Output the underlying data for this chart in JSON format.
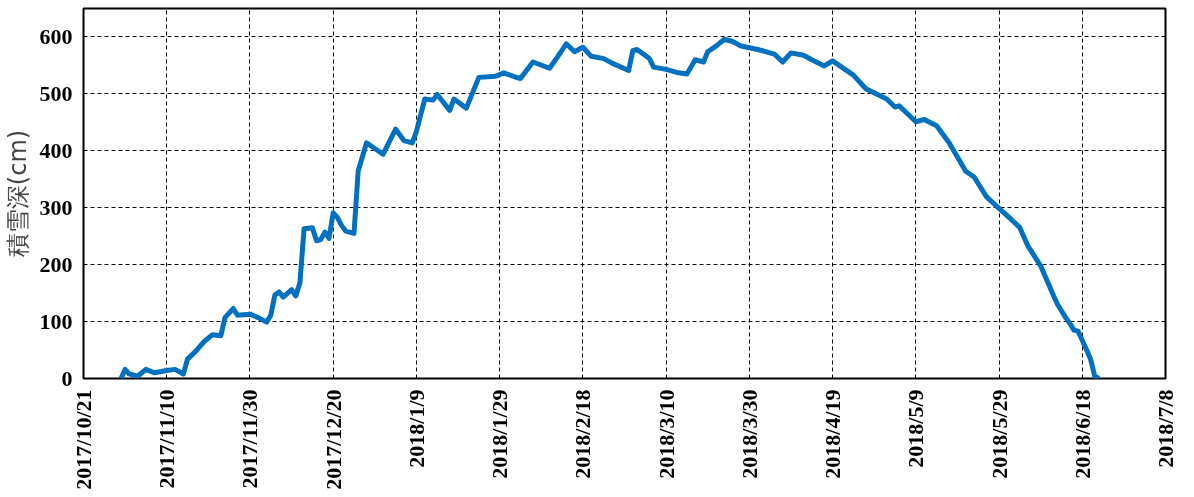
{
  "chart_data": {
    "type": "line",
    "ylabel": "積雪深(cm)",
    "x": [
      "2017-10-30",
      "2017-10-31",
      "2017-11-01",
      "2017-11-03",
      "2017-11-05",
      "2017-11-07",
      "2017-11-10",
      "2017-11-12",
      "2017-11-14",
      "2017-11-15",
      "2017-11-17",
      "2017-11-19",
      "2017-11-21",
      "2017-11-23",
      "2017-11-24",
      "2017-11-26",
      "2017-11-27",
      "2017-11-30",
      "2017-12-02",
      "2017-12-04",
      "2017-12-05",
      "2017-12-06",
      "2017-12-07",
      "2017-12-08",
      "2017-12-10",
      "2017-12-11",
      "2017-12-12",
      "2017-12-13",
      "2017-12-15",
      "2017-12-16",
      "2017-12-17",
      "2017-12-18",
      "2017-12-19",
      "2017-12-20",
      "2017-12-21",
      "2017-12-22",
      "2017-12-23",
      "2017-12-25",
      "2017-12-26",
      "2017-12-28",
      "2017-12-30",
      "2018-01-01",
      "2018-01-04",
      "2018-01-06",
      "2018-01-08",
      "2018-01-09",
      "2018-01-11",
      "2018-01-13",
      "2018-01-14",
      "2018-01-17",
      "2018-01-18",
      "2018-01-21",
      "2018-01-24",
      "2018-01-28",
      "2018-01-30",
      "2018-02-02",
      "2018-02-03",
      "2018-02-06",
      "2018-02-10",
      "2018-02-12",
      "2018-02-14",
      "2018-02-16",
      "2018-02-18",
      "2018-02-20",
      "2018-02-23",
      "2018-02-25",
      "2018-03-01",
      "2018-03-02",
      "2018-03-03",
      "2018-03-06",
      "2018-03-07",
      "2018-03-10",
      "2018-03-13",
      "2018-03-15",
      "2018-03-17",
      "2018-03-19",
      "2018-03-20",
      "2018-03-22",
      "2018-03-24",
      "2018-03-26",
      "2018-03-28",
      "2018-04-01",
      "2018-04-05",
      "2018-04-07",
      "2018-04-09",
      "2018-04-12",
      "2018-04-14",
      "2018-04-17",
      "2018-04-19",
      "2018-04-24",
      "2018-04-27",
      "2018-05-02",
      "2018-05-04",
      "2018-05-05",
      "2018-05-07",
      "2018-05-09",
      "2018-05-11",
      "2018-05-14",
      "2018-05-17",
      "2018-05-21",
      "2018-05-23",
      "2018-05-26",
      "2018-05-29",
      "2018-06-01",
      "2018-06-03",
      "2018-06-05",
      "2018-06-08",
      "2018-06-11",
      "2018-06-12",
      "2018-06-14",
      "2018-06-15",
      "2018-06-16",
      "2018-06-17",
      "2018-06-19",
      "2018-06-20",
      "2018-06-21",
      "2018-06-22"
    ],
    "series": [
      {
        "color": "#0070c0",
        "values": [
          0,
          16,
          8,
          4,
          16,
          10,
          14,
          16,
          8,
          34,
          48,
          65,
          77,
          75,
          107,
          123,
          111,
          113,
          107,
          99,
          111,
          147,
          152,
          143,
          156,
          145,
          168,
          263,
          265,
          242,
          244,
          257,
          246,
          291,
          283,
          269,
          259,
          255,
          364,
          414,
          404,
          394,
          438,
          418,
          414,
          434,
          491,
          489,
          499,
          471,
          491,
          475,
          529,
          531,
          537,
          529,
          527,
          556,
          545,
          566,
          588,
          574,
          582,
          566,
          562,
          554,
          541,
          576,
          578,
          562,
          547,
          543,
          537,
          535,
          560,
          556,
          574,
          584,
          596,
          592,
          584,
          578,
          570,
          556,
          572,
          568,
          560,
          549,
          558,
          533,
          509,
          491,
          477,
          479,
          465,
          451,
          455,
          444,
          414,
          364,
          354,
          319,
          299,
          279,
          265,
          232,
          198,
          147,
          131,
          107,
          97,
          85,
          83,
          51,
          34,
          4,
          0
        ]
      }
    ],
    "xlim": [
      "2017-10-21",
      "2018-07-08"
    ],
    "xticks": [
      {
        "value": "2017-10-21",
        "label": "2017/10/21"
      },
      {
        "value": "2017-11-10",
        "label": "2017/11/10"
      },
      {
        "value": "2017-11-30",
        "label": "2017/11/30"
      },
      {
        "value": "2017-12-20",
        "label": "2017/12/20"
      },
      {
        "value": "2018-01-09",
        "label": "2018/1/9"
      },
      {
        "value": "2018-01-29",
        "label": "2018/1/29"
      },
      {
        "value": "2018-02-18",
        "label": "2018/2/18"
      },
      {
        "value": "2018-03-10",
        "label": "2018/3/10"
      },
      {
        "value": "2018-03-30",
        "label": "2018/3/30"
      },
      {
        "value": "2018-04-19",
        "label": "2018/4/19"
      },
      {
        "value": "2018-05-09",
        "label": "2018/5/9"
      },
      {
        "value": "2018-05-29",
        "label": "2018/5/29"
      },
      {
        "value": "2018-06-18",
        "label": "2018/6/18"
      },
      {
        "value": "2018-07-08",
        "label": "2018/7/8"
      }
    ],
    "ylim": [
      0,
      650
    ],
    "yticks": [
      0,
      100,
      200,
      300,
      400,
      500,
      600
    ],
    "grid": true,
    "line_style": "solid"
  }
}
